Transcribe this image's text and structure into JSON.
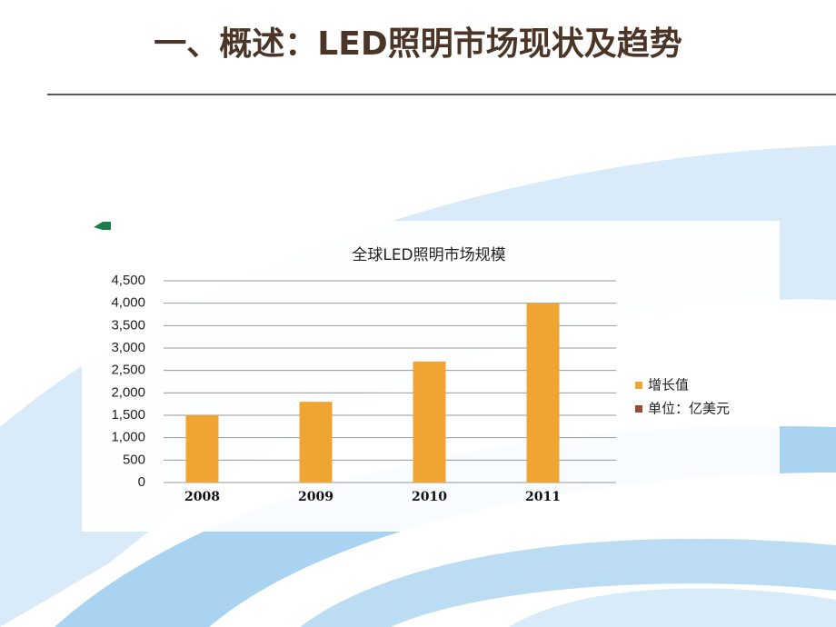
{
  "slide_title": "一、概述：LED照明市场现状及趋势",
  "chart_data": {
    "type": "bar",
    "title": "全球LED照明市场规模",
    "categories": [
      "2008",
      "2009",
      "2010",
      "2011"
    ],
    "series": [
      {
        "name": "增长值",
        "color": "#f0a431",
        "values": [
          1500,
          1800,
          2700,
          4000
        ]
      }
    ],
    "unit_note": {
      "text": "单位：亿美元",
      "color": "#9b4a33"
    },
    "ylim": [
      0,
      4500
    ],
    "yticks": [
      0,
      500,
      {
        "value": 1000,
        "label": "1,000"
      },
      {
        "value": 1500,
        "label": "1,500"
      },
      {
        "value": 2000,
        "label": "2,000"
      },
      {
        "value": 2500,
        "label": "2,500"
      },
      {
        "value": 3000,
        "label": "3,000"
      },
      {
        "value": 3500,
        "label": "3,500"
      },
      {
        "value": 4000,
        "label": "4,000"
      },
      {
        "value": 4500,
        "label": "4,500"
      }
    ],
    "grid": true,
    "legend": "right"
  }
}
